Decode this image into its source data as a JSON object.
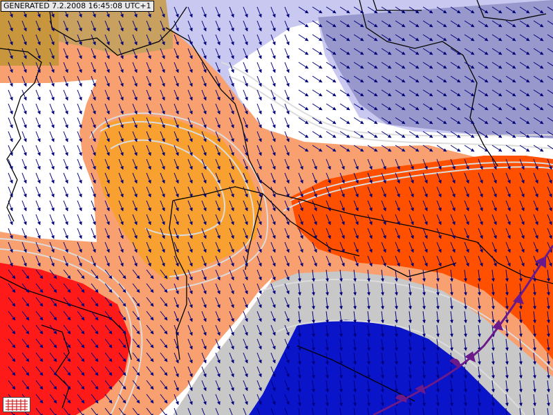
{
  "stamp": {
    "label": "GENERATED 7.2.2008 16:45:08 UTC+1"
  },
  "map": {
    "layers": [
      "temperature-fill",
      "isotherms",
      "borders",
      "wind-arrows",
      "front"
    ],
    "colors": {
      "land_olive": "#c8963c",
      "land_tan": "#c8a060",
      "cold_lavender": "#c8c8f0",
      "cold_blue": "#9898cc",
      "white": "#ffffff",
      "light_orange": "#f8a070",
      "orange": "#f8a030",
      "red_orange": "#ff5000",
      "red": "#ff1a1a",
      "grey": "#c8c8c8",
      "deep_blue": "#0a14c8",
      "isotherm": "#dcdcdc",
      "border": "#000000",
      "arrow": "#00007a",
      "front": "#6a1a8a"
    },
    "wind_arrow_icon": "wind-arrow-icon",
    "front_type": "occluded-front"
  }
}
